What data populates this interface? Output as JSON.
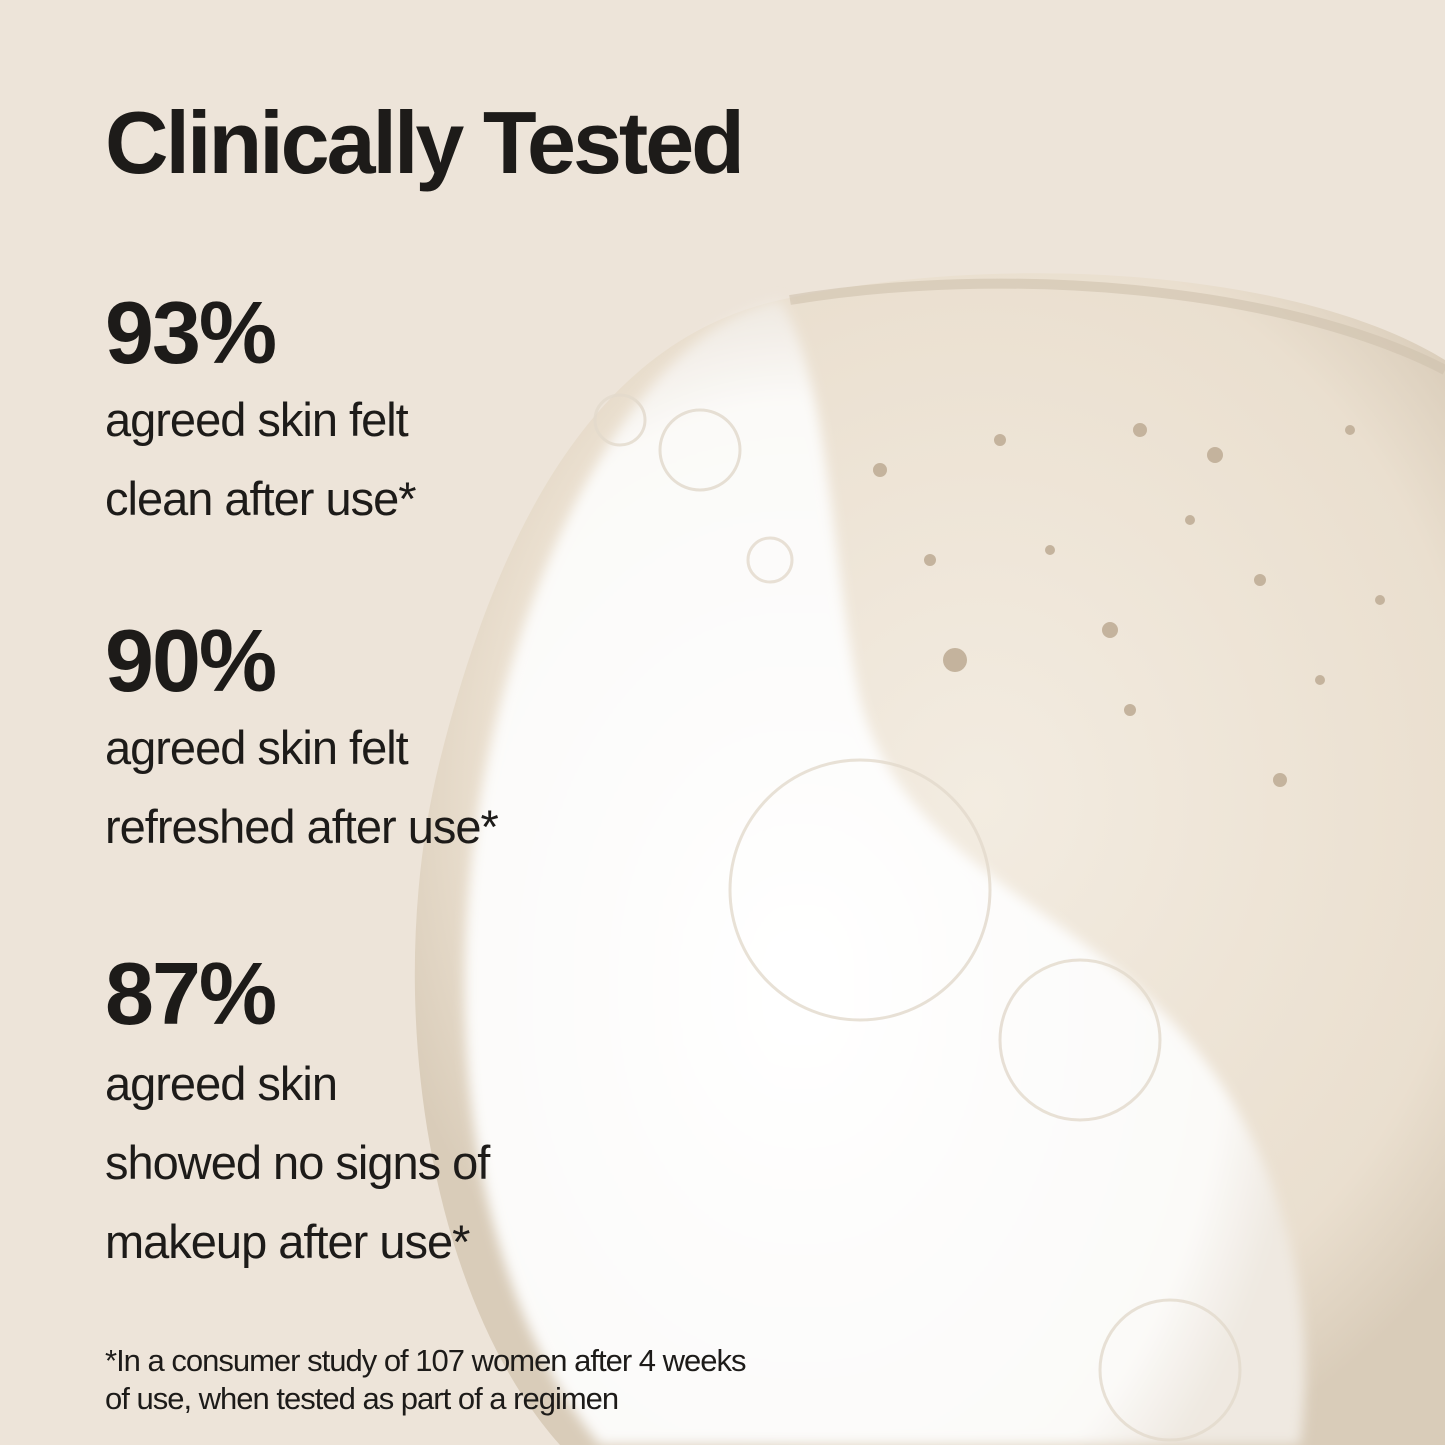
{
  "title": "Clinically Tested",
  "stats": [
    {
      "value": "93%",
      "lines": [
        "agreed skin felt",
        "clean after use*"
      ]
    },
    {
      "value": "90%",
      "lines": [
        "agreed skin felt",
        "refreshed after use*"
      ]
    },
    {
      "value": "87%",
      "lines": [
        "agreed skin",
        "showed no signs of",
        "makeup after use*"
      ]
    }
  ],
  "footnote": [
    "*In a consumer study of 107 women after 4 weeks",
    "of use, when tested as part of a regimen"
  ],
  "colors": {
    "background": "#ede4d9",
    "text": "#1d1b19",
    "foam": "#ffffff"
  }
}
